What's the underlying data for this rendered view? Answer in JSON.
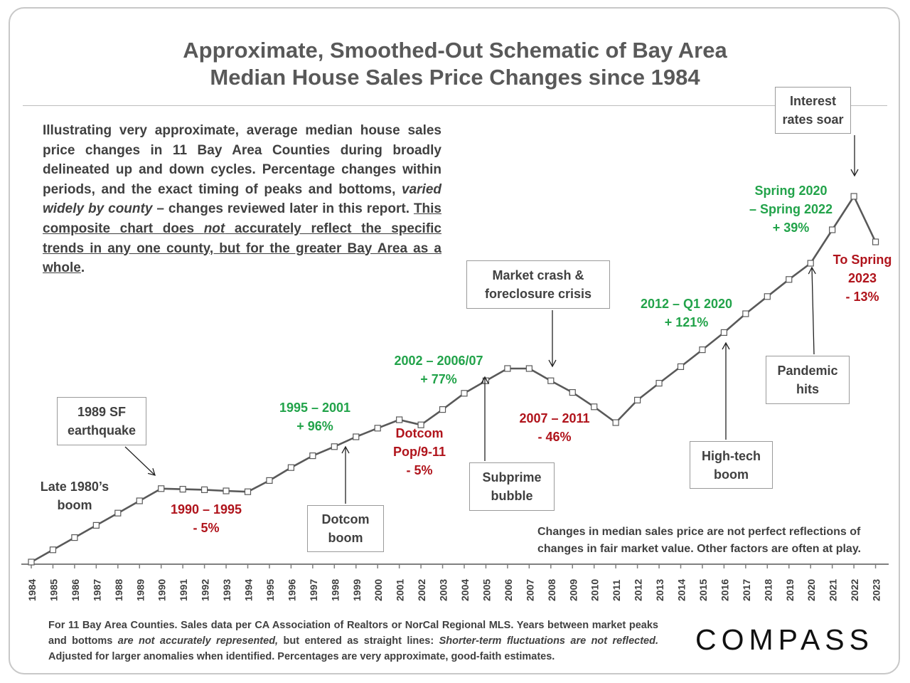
{
  "title": {
    "line1": "Approximate, Smoothed-Out Schematic of Bay Area",
    "line2": "Median House Sales Price Changes since 1984"
  },
  "intro": {
    "part1": "Illustrating very approximate, average median house sales price changes in 11 Bay Area Counties during broadly delineated up and down cycles. Percentage changes within periods, and the exact timing of peaks and bottoms, ",
    "emph": "varied widely by county",
    "part2": " – changes reviewed later in this report. ",
    "underline1": "This composite chart does ",
    "underline_em": "not",
    "underline2": " accurately reflect the specific trends in any one county, but for the greater Bay Area as a whole",
    "end": "."
  },
  "period_labels": [
    {
      "id": "late80s",
      "text": "Late 1980’s\nboom",
      "color": "dark"
    },
    {
      "id": "p1990",
      "text": "1990 – 1995\n- 5%",
      "color": "red"
    },
    {
      "id": "p1995",
      "text": "1995 – 2001\n+ 96%",
      "color": "green"
    },
    {
      "id": "dotcompop",
      "text": "Dotcom\nPop/9-11\n- 5%",
      "color": "red"
    },
    {
      "id": "p2002",
      "text": "2002 – 2006/07\n+ 77%",
      "color": "green"
    },
    {
      "id": "p2007",
      "text": "2007 – 2011\n- 46%",
      "color": "red"
    },
    {
      "id": "p2012",
      "text": "2012 –  Q1 2020\n+ 121%",
      "color": "green"
    },
    {
      "id": "p2020",
      "text": "Spring 2020\n– Spring 2022\n+ 39%",
      "color": "green"
    },
    {
      "id": "p2023",
      "text": "To Spring\n2023\n- 13%",
      "color": "red"
    }
  ],
  "event_boxes": [
    {
      "id": "earthquake",
      "text": "1989 SF\nearthquake"
    },
    {
      "id": "dotcomboom",
      "text": "Dotcom\nboom"
    },
    {
      "id": "subprime",
      "text": "Subprime\nbubble"
    },
    {
      "id": "crash",
      "text": "Market crash &\nforeclosure crisis"
    },
    {
      "id": "hightech",
      "text": "High-tech\nboom"
    },
    {
      "id": "pandemic",
      "text": "Pandemic\nhits"
    },
    {
      "id": "rates",
      "text": "Interest\nrates soar"
    }
  ],
  "note": "Changes in median sales price are not perfect reflections of changes in fair market value. Other factors are often at play.",
  "footer": {
    "part1": "For 11 Bay Area Counties. Sales data per CA Association of Realtors or NorCal Regional MLS. Years between market peaks and bottoms ",
    "em1": "are not accurately represented,",
    "part2": " but entered as straight lines: ",
    "em2": "Shorter-term fluctuations are not reflected.",
    "part3": " Adjusted for larger anomalies when identified. Percentages are very approximate, good-faith estimates."
  },
  "logo": "COMPASS",
  "colors": {
    "line": "#595959",
    "green": "#22a34a",
    "red": "#b0141c",
    "text": "#404040"
  },
  "chart_data": {
    "type": "line",
    "title": "Approximate, Smoothed-Out Schematic of Bay Area Median House Sales Price Changes since 1984",
    "xlabel": "",
    "ylabel": "",
    "y_axis_shown": false,
    "x": [
      "1984",
      "1985",
      "1986",
      "1987",
      "1988",
      "1989",
      "1990",
      "1991",
      "1992",
      "1993",
      "1994",
      "1995",
      "1996",
      "1997",
      "1998",
      "1999",
      "2000",
      "2001",
      "2002",
      "2003",
      "2004",
      "2005",
      "2006",
      "2007",
      "2008",
      "2009",
      "2010",
      "2011",
      "2012",
      "2013",
      "2014",
      "2015",
      "2016",
      "2017",
      "2018",
      "2019",
      "2020",
      "2021",
      "2022",
      "2023"
    ],
    "values": [
      0,
      8.6,
      17.2,
      25.8,
      34.4,
      43.0,
      51.6,
      51.2,
      50.8,
      50.0,
      49.4,
      57.3,
      66.4,
      74.7,
      81.1,
      88.0,
      94.1,
      100.0,
      96.4,
      107.2,
      118.6,
      127.4,
      136.0,
      136.0,
      127.4,
      119.2,
      109.1,
      98.0,
      113.8,
      125.7,
      137.3,
      149.2,
      161.3,
      174.5,
      186.6,
      198.6,
      210.0,
      233.5,
      257.0,
      225.0
    ],
    "ylim": [
      0,
      270
    ]
  }
}
